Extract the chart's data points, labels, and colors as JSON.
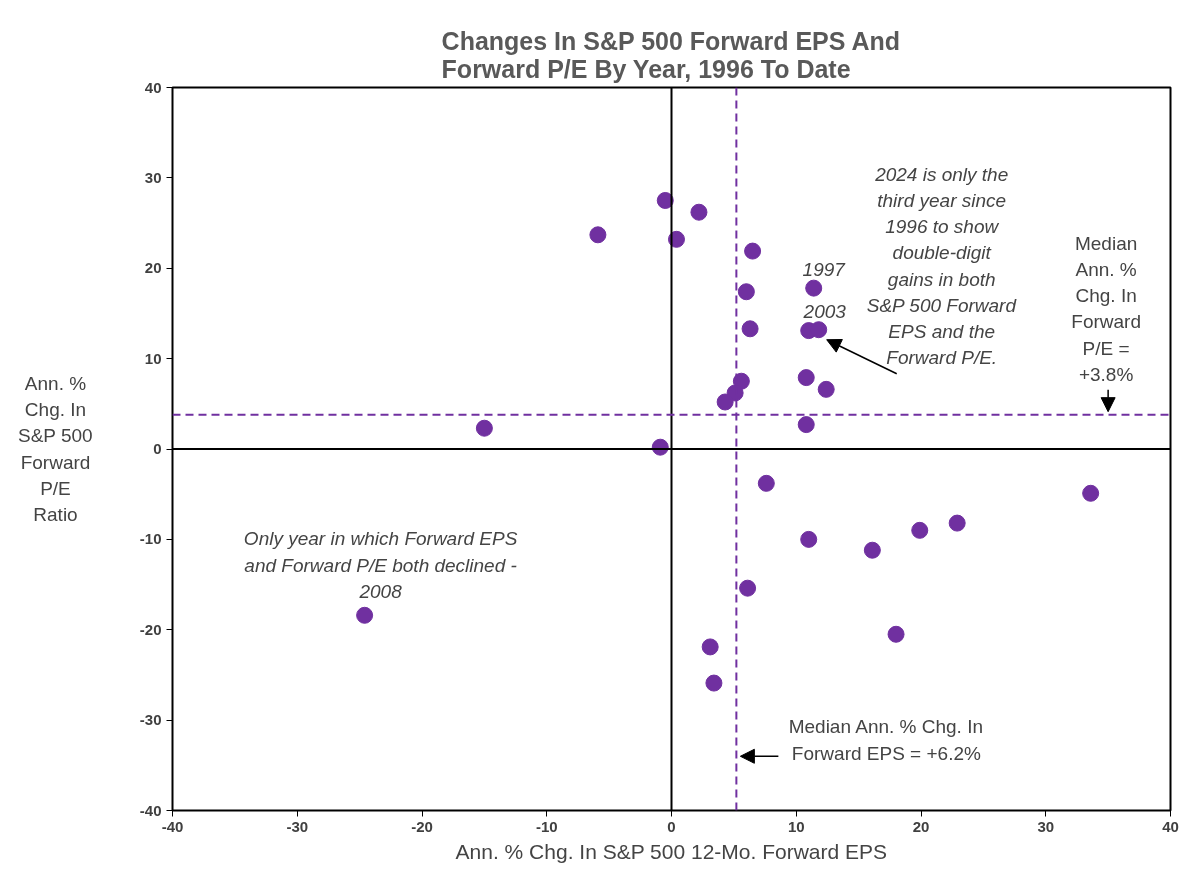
{
  "chart_data": {
    "type": "scatter",
    "title": "Changes In S&P 500 Forward EPS And Forward P/E By Year, 1996 To Date",
    "xlabel": "Ann. % Chg. In S&P 500 12-Mo. Forward EPS",
    "ylabel": "Ann. % Chg. In S&P 500 Forward P/E Ratio",
    "series": [
      {
        "color": "#7030a0",
        "x": [
          -24.6,
          -15.0,
          -5.9,
          -0.5,
          2.2,
          0.4,
          6.5,
          6.0,
          6.3,
          11.4,
          11.0,
          11.8,
          5.6,
          5.1,
          4.3,
          10.8,
          12.4,
          10.8,
          -0.9,
          7.6,
          11.0,
          6.1,
          3.1,
          3.4,
          16.1,
          19.9,
          22.9,
          33.6,
          18.0
        ],
        "values": [
          -18.4,
          2.3,
          23.7,
          27.5,
          26.2,
          23.2,
          21.9,
          17.4,
          13.3,
          17.8,
          13.1,
          13.2,
          7.5,
          6.2,
          5.2,
          7.9,
          6.6,
          2.7,
          0.2,
          -3.8,
          -10.0,
          -15.4,
          -21.9,
          -25.9,
          -11.2,
          -9.0,
          -8.2,
          -4.9,
          -20.5
        ]
      }
    ],
    "marker": "circle",
    "xlim": [
      -40,
      40
    ],
    "ylim": [
      -40,
      40
    ],
    "xticks": [
      -40,
      -30,
      -20,
      -10,
      0,
      10,
      20,
      30,
      40
    ],
    "yticks": [
      -40,
      -30,
      -20,
      -10,
      0,
      10,
      20,
      30,
      40
    ],
    "grid": false,
    "legend": false,
    "ref_lines": [
      {
        "axis": "x",
        "value": 0,
        "color": "#000000",
        "line_style": "solid"
      },
      {
        "axis": "y",
        "value": 0,
        "color": "#000000",
        "line_style": "solid"
      },
      {
        "axis": "x",
        "value": 5.2,
        "color": "#7030a0",
        "line_style": "dashed"
      },
      {
        "axis": "y",
        "value": 3.8,
        "color": "#7030a0",
        "line_style": "dashed"
      }
    ],
    "annotations": [
      {
        "text": "1997",
        "x": 11.4,
        "y": 17.8
      },
      {
        "text": "2003",
        "x": 11.8,
        "y": 13.2
      },
      {
        "text": "2024 is only the third year since 1996 to show double-digit gains in both S&P 500 Forward EPS and the Forward P/E.",
        "x": 11.8,
        "y": 13.2
      },
      {
        "text": "Median Ann. % Chg. In Forward P/E = +3.8%",
        "x": 35,
        "y": 3.8
      },
      {
        "text": "Median Ann. % Chg. In Forward EPS = +6.2%",
        "x": 5.2,
        "y": -34
      },
      {
        "text": "Only year in which Forward EPS and Forward P/E both declined - 2008",
        "x": -24.6,
        "y": -18.4
      }
    ]
  }
}
